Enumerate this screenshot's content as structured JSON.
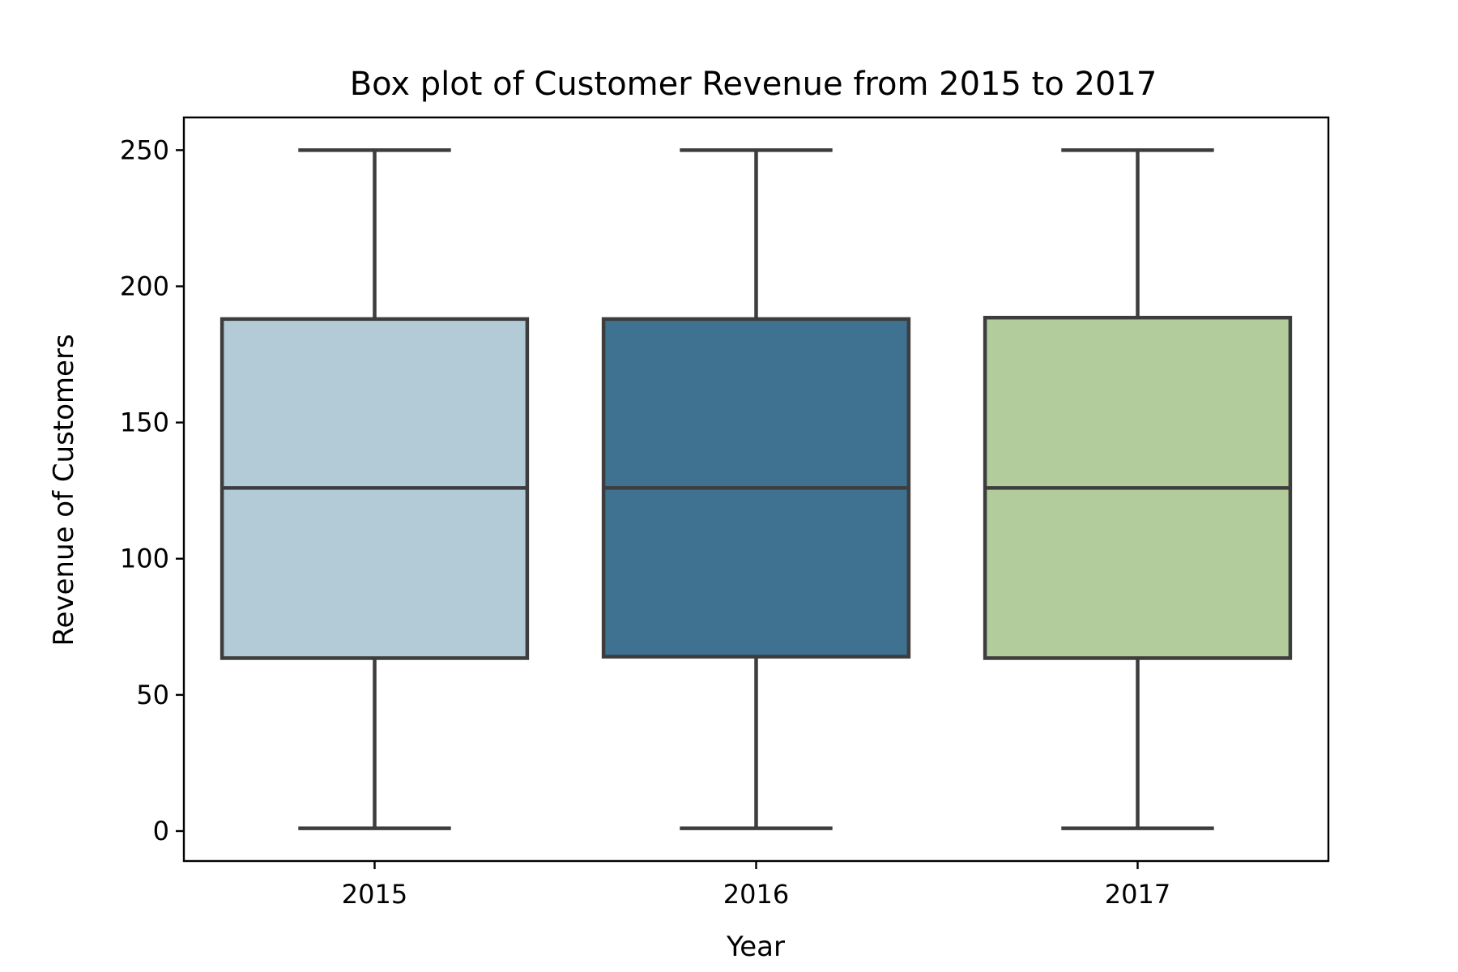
{
  "chart_data": {
    "type": "box",
    "title": "Box plot of Customer Revenue from 2015 to 2017",
    "xlabel": "Year",
    "ylabel": "Revenue of Customers",
    "categories": [
      "2015",
      "2016",
      "2017"
    ],
    "boxes": [
      {
        "category": "2015",
        "whisker_low": 1,
        "q1": 63.5,
        "median": 126,
        "q3": 188,
        "whisker_high": 250,
        "color": "#b3cad7"
      },
      {
        "category": "2016",
        "whisker_low": 1,
        "q1": 64,
        "median": 126,
        "q3": 188,
        "whisker_high": 250,
        "color": "#3f7191"
      },
      {
        "category": "2017",
        "whisker_low": 1,
        "q1": 63.5,
        "median": 126,
        "q3": 188.5,
        "whisker_high": 250,
        "color": "#b2cc9b"
      }
    ],
    "ylim": [
      -11,
      262
    ],
    "yticks": [
      0,
      50,
      100,
      150,
      200,
      250
    ],
    "ytick_labels": [
      "0",
      "50",
      "100",
      "150",
      "200",
      "250"
    ],
    "xtick_labels": [
      "2015",
      "2016",
      "2017"
    ],
    "grid": false,
    "line_color": "#3d3d3d"
  }
}
